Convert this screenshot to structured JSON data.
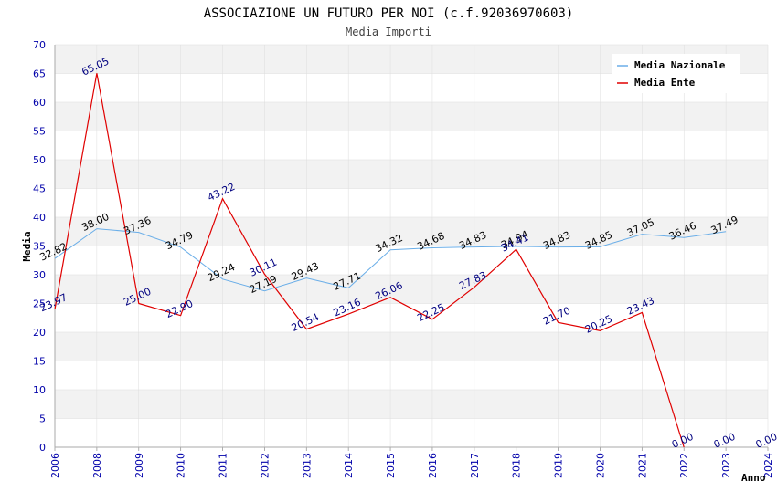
{
  "chart_data": {
    "type": "line",
    "title": "ASSOCIAZIONE UN FUTURO PER NOI (c.f.92036970603)",
    "subtitle": "Media Importi",
    "xlabel": "Anno",
    "ylabel": "Media",
    "ylim": [
      0,
      70
    ],
    "yticks": [
      "0",
      "5",
      "10",
      "15",
      "20",
      "25",
      "30",
      "35",
      "40",
      "45",
      "50",
      "55",
      "60",
      "65",
      "70"
    ],
    "categories": [
      "2006",
      "2008",
      "2009",
      "2010",
      "2011",
      "2012",
      "2013",
      "2014",
      "2015",
      "2016",
      "2017",
      "2018",
      "2019",
      "2020",
      "2021",
      "2022",
      "2023",
      "2024"
    ],
    "legend_position": "top-right",
    "series": [
      {
        "name": "Media Nazionale",
        "color": "#6aaee8",
        "label_color": "#000000",
        "values": [
          32.82,
          38.0,
          37.36,
          34.79,
          29.24,
          27.19,
          29.43,
          27.71,
          34.32,
          34.68,
          34.83,
          34.94,
          34.83,
          34.85,
          37.05,
          36.46,
          37.49,
          null
        ],
        "labels": [
          "32.82",
          "38.00",
          "37.36",
          "34.79",
          "29.24",
          "27.19",
          "29.43",
          "27.71",
          "34.32",
          "34.68",
          "34.83",
          "34.94",
          "34.83",
          "34.85",
          "37.05",
          "36.46",
          "37.49",
          null
        ]
      },
      {
        "name": "Media Ente",
        "color": "#e00000",
        "label_color": "#000080",
        "values": [
          23.97,
          65.05,
          25.0,
          22.9,
          43.22,
          30.11,
          20.54,
          23.16,
          26.06,
          22.25,
          27.83,
          34.41,
          21.7,
          20.25,
          23.43,
          0.0,
          0.0,
          0.0
        ],
        "labels": [
          "23.97",
          "65.05",
          "25.00",
          "22.90",
          "43.22",
          "30.11",
          "20.54",
          "23.16",
          "26.06",
          "22.25",
          "27.83",
          "34.41",
          "21.70",
          "20.25",
          "23.43",
          "0.00",
          "0.00",
          "0.00"
        ],
        "line_points": 16
      }
    ],
    "colors": {
      "axis_text": "#0000aa",
      "band": "#f2f2f2",
      "grid": "#dddddd"
    }
  }
}
